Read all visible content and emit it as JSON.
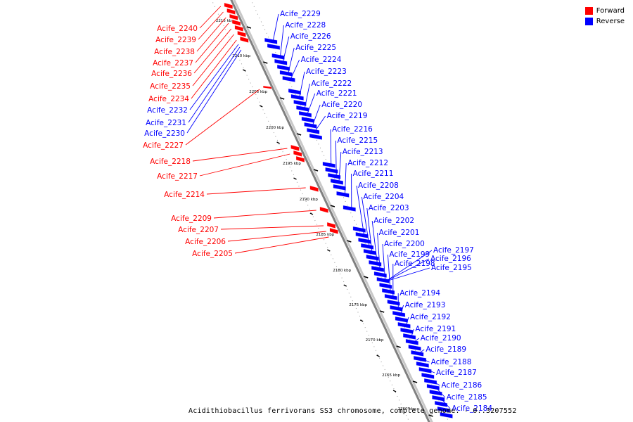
{
  "caption": "Acidithiobacillus ferrivorans SS3 chromosome, complete genome. - 0..3207552",
  "legend": [
    {
      "label": "Forward",
      "color": "#ff0000"
    },
    {
      "label": "Reverse",
      "color": "#0000ff"
    }
  ],
  "colors": {
    "forward": "#ff0000",
    "reverse": "#0000ff",
    "backbone": "#808080"
  },
  "ticks": [
    "2215 kbp",
    "2210 kbp",
    "2205 kbp",
    "2200 kbp",
    "2195 kbp",
    "2190 kbp",
    "2185 kbp",
    "2180 kbp",
    "2175 kbp",
    "2170 kbp",
    "2165 kbp",
    "2160 kbp"
  ],
  "forward_labels": [
    "Acife_2240",
    "Acife_2239",
    "Acife_2238",
    "Acife_2237",
    "Acife_2236",
    "Acife_2235",
    "Acife_2234",
    "Acife_2232",
    "Acife_2231",
    "Acife_2230",
    "Acife_2227",
    "Acife_2218",
    "Acife_2217",
    "Acife_2214",
    "Acife_2209",
    "Acife_2207",
    "Acife_2206",
    "Acife_2205"
  ],
  "forward_label_strand": [
    "forward",
    "forward",
    "forward",
    "forward",
    "forward",
    "forward",
    "forward",
    "reverse",
    "reverse",
    "reverse",
    "forward",
    "forward",
    "forward",
    "forward",
    "forward",
    "forward",
    "forward",
    "forward"
  ],
  "reverse_labels": [
    "Acife_2229",
    "Acife_2228",
    "Acife_2226",
    "Acife_2225",
    "Acife_2224",
    "Acife_2223",
    "Acife_2222",
    "Acife_2221",
    "Acife_2220",
    "Acife_2219",
    "Acife_2216",
    "Acife_2215",
    "Acife_2213",
    "Acife_2212",
    "Acife_2211",
    "Acife_2208",
    "Acife_2204",
    "Acife_2203",
    "Acife_2202",
    "Acife_2201",
    "Acife_2200",
    "Acife_2199",
    "Acife_2198",
    "Acife_2194",
    "Acife_2193",
    "Acife_2192",
    "Acife_2191",
    "Acife_2190",
    "Acife_2189",
    "Acife_2188",
    "Acife_2187",
    "Acife_2186",
    "Acife_2185",
    "Acife_2184"
  ],
  "far_right_labels": [
    "Acife_2197",
    "Acife_2196",
    "Acife_2195"
  ]
}
